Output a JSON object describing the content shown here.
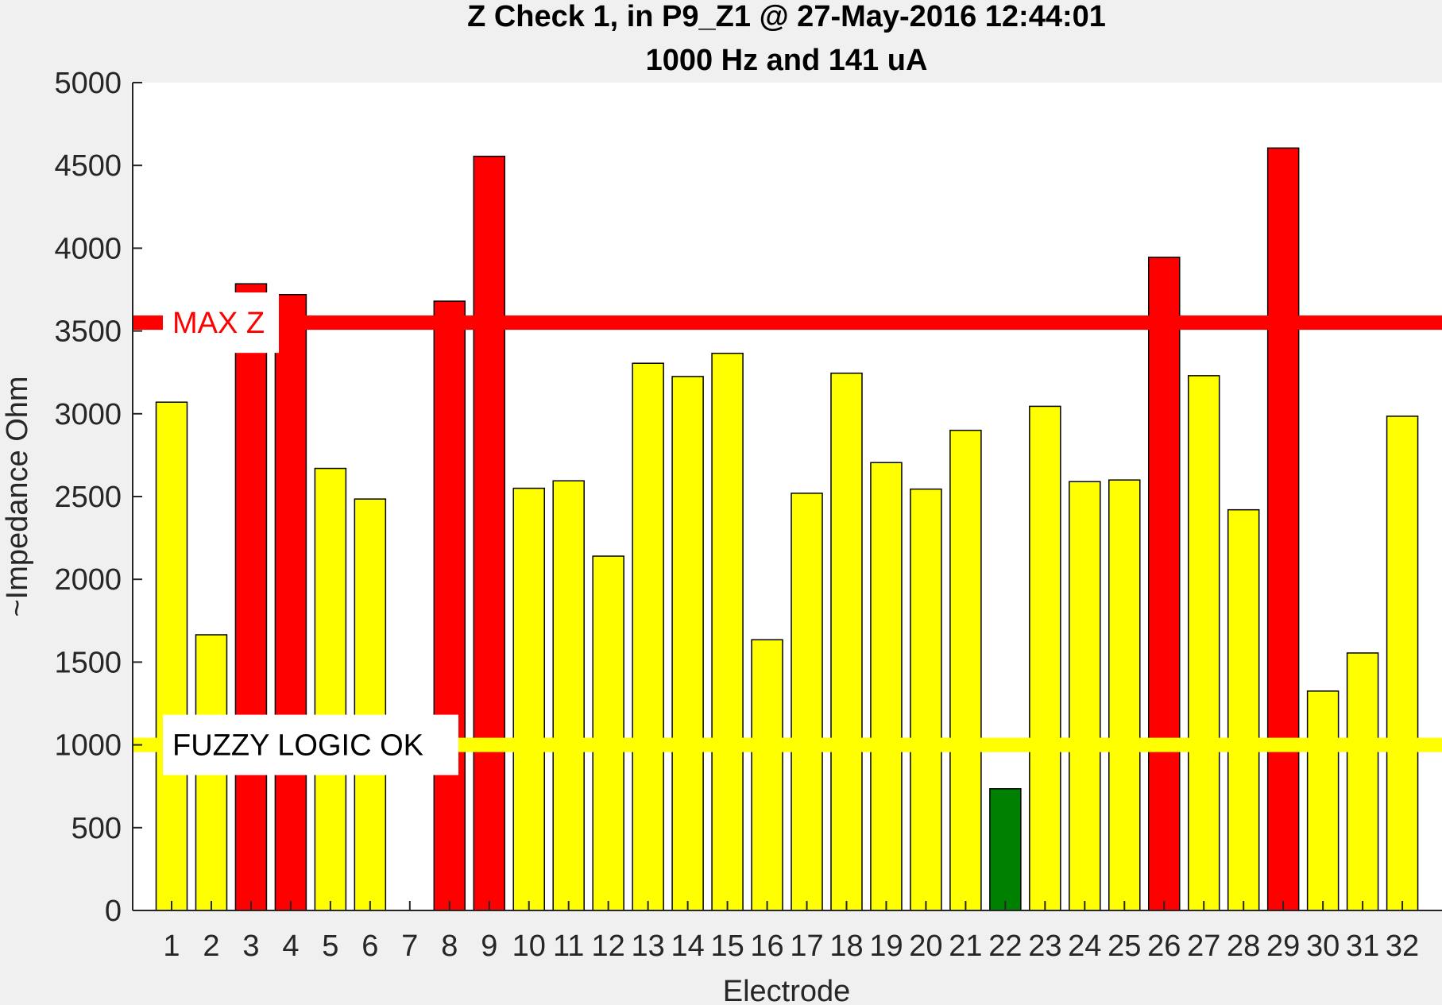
{
  "chart_data": {
    "type": "bar",
    "title": "Z Check 1, in P9_Z1 @ 27-May-2016 12:44:01",
    "subtitle": "1000 Hz and 141 uA",
    "xlabel": "Electrode",
    "ylabel": "~Impedance Ohm",
    "ylim": [
      0,
      5000
    ],
    "yticks": [
      0,
      500,
      1000,
      1500,
      2000,
      2500,
      3000,
      3500,
      4000,
      4500,
      5000
    ],
    "categories": [
      "1",
      "2",
      "3",
      "4",
      "5",
      "6",
      "7",
      "8",
      "9",
      "10",
      "11",
      "12",
      "13",
      "14",
      "15",
      "16",
      "17",
      "18",
      "19",
      "20",
      "21",
      "22",
      "23",
      "24",
      "25",
      "26",
      "27",
      "28",
      "29",
      "30",
      "31",
      "32"
    ],
    "values": [
      3070,
      1665,
      3785,
      3720,
      2670,
      2485,
      0,
      3680,
      4555,
      2550,
      2595,
      2140,
      3305,
      3225,
      3365,
      1635,
      2520,
      3245,
      2705,
      2545,
      2900,
      735,
      3045,
      2590,
      2600,
      3945,
      3230,
      2420,
      4605,
      1325,
      1555,
      2985
    ],
    "reference_lines": [
      {
        "label": "MAX Z",
        "value": 3550,
        "color": "#ff0000"
      },
      {
        "label": "FUZZY LOGIC OK",
        "value": 1000,
        "color": "#ffff00"
      }
    ],
    "colors": {
      "above_max": "#ff0000",
      "fuzzy": "#ffff00",
      "ok": "#008000"
    },
    "grid": false
  }
}
